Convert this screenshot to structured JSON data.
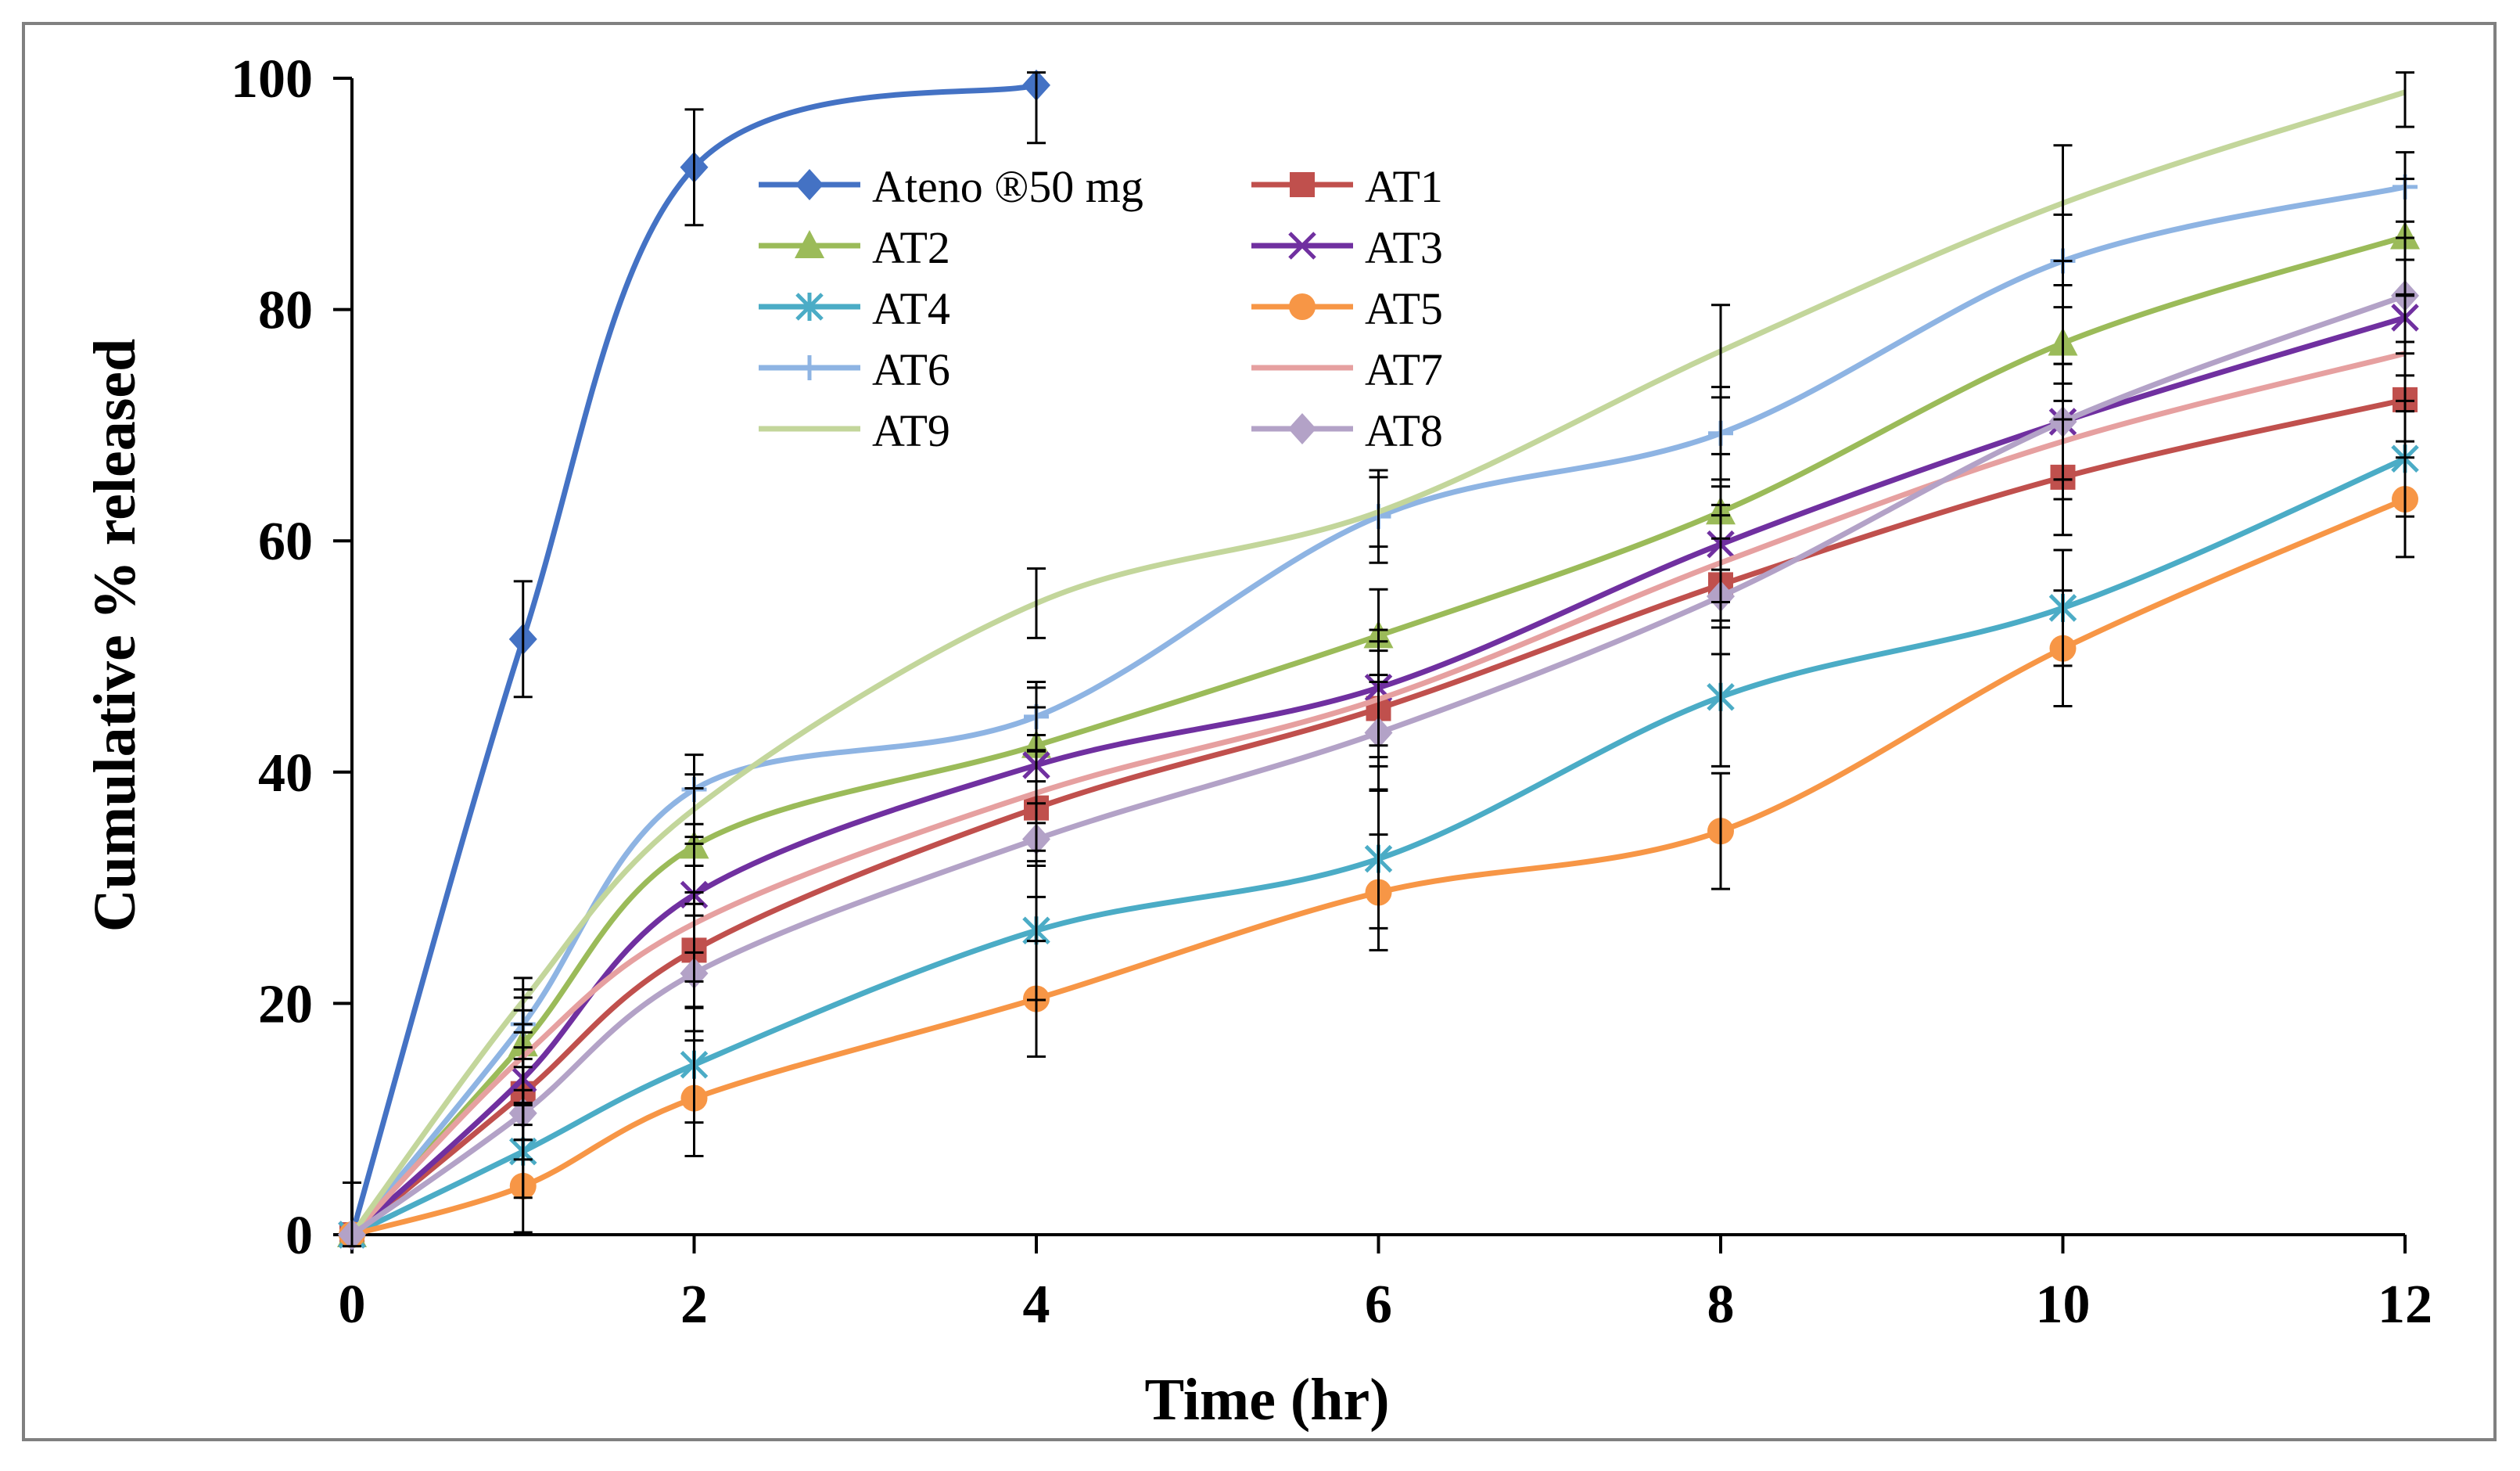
{
  "chart_data": {
    "type": "line",
    "title": "",
    "xlabel": "Time (hr)",
    "ylabel": "Cumulative % released",
    "xlim": [
      0,
      12
    ],
    "ylim": [
      0,
      100
    ],
    "x_ticks": [
      0,
      2,
      4,
      6,
      8,
      10,
      12
    ],
    "y_ticks": [
      0,
      20,
      40,
      60,
      80,
      100
    ],
    "grid": false,
    "legend_position": "top-left inside plot",
    "x": [
      0,
      1,
      2,
      4,
      6,
      8,
      10,
      12
    ],
    "series": [
      {
        "name": "Ateno ®50 mg",
        "color": "#4472C4",
        "marker": "diamond",
        "x": [
          0,
          1,
          2,
          4
        ],
        "values": [
          0,
          51.5,
          92.3,
          99.4
        ],
        "errors": [
          4.5,
          5,
          5,
          5
        ]
      },
      {
        "name": "AT1",
        "color": "#C0504D",
        "marker": "square",
        "values": [
          0,
          12.2,
          24.6,
          36.9,
          45.5,
          56.2,
          65.5,
          72.2
        ],
        "errors": [
          0,
          4,
          5,
          5,
          5,
          6,
          5,
          5
        ]
      },
      {
        "name": "AT2",
        "color": "#9BBB59",
        "marker": "triangle",
        "values": [
          0,
          16.5,
          33.6,
          42.3,
          51.8,
          62.5,
          77.1,
          86.3
        ],
        "errors": [
          0,
          4,
          5,
          5,
          4,
          5,
          5,
          5
        ]
      },
      {
        "name": "AT3",
        "color": "#7030A0",
        "marker": "x",
        "values": [
          0,
          13.5,
          29.4,
          40.6,
          47.3,
          59.7,
          70.3,
          79.3
        ],
        "errors": [
          0,
          4,
          5,
          5,
          5,
          5,
          5,
          5
        ]
      },
      {
        "name": "AT4",
        "color": "#4BACC6",
        "marker": "star",
        "values": [
          0,
          7.2,
          14.7,
          26.3,
          32.5,
          46.5,
          54.2,
          67.1
        ],
        "errors": [
          0,
          4,
          5,
          6,
          6,
          6,
          5,
          5
        ]
      },
      {
        "name": "AT5",
        "color": "#F79646",
        "marker": "circle",
        "values": [
          0,
          4.2,
          11.8,
          20.4,
          29.6,
          34.9,
          50.7,
          63.6
        ],
        "errors": [
          0,
          4,
          5,
          5,
          5,
          5,
          5,
          5
        ]
      },
      {
        "name": "AT6",
        "color": "#8EB4E3",
        "marker": "plus",
        "values": [
          0,
          18.2,
          38.5,
          44.8,
          62.1,
          69.3,
          84.2,
          90.6
        ],
        "errors": [
          0,
          3,
          3,
          3,
          4,
          4,
          4,
          3
        ]
      },
      {
        "name": "AT7",
        "color": "#E6A0A0",
        "marker": "none",
        "values": [
          0,
          15.4,
          26.9,
          38.2,
          46.3,
          58.1,
          68.6,
          76.2
        ],
        "errors": [
          0,
          4,
          5,
          5,
          5,
          5,
          5,
          5
        ]
      },
      {
        "name": "AT9",
        "color": "#C3D69B",
        "marker": "none",
        "values": [
          0,
          20.2,
          36.8,
          54.6,
          62.5,
          76.4,
          89.2,
          98.8
        ],
        "errors": [
          0,
          2,
          3,
          3,
          3,
          4,
          5,
          3
        ]
      },
      {
        "name": "AT8",
        "color": "#B3A2C7",
        "marker": "diamond",
        "values": [
          0,
          10.5,
          22.6,
          34.2,
          43.4,
          55.2,
          70.3,
          81.2
        ],
        "errors": [
          0,
          4,
          5,
          5,
          5,
          5,
          5,
          5
        ]
      }
    ]
  }
}
